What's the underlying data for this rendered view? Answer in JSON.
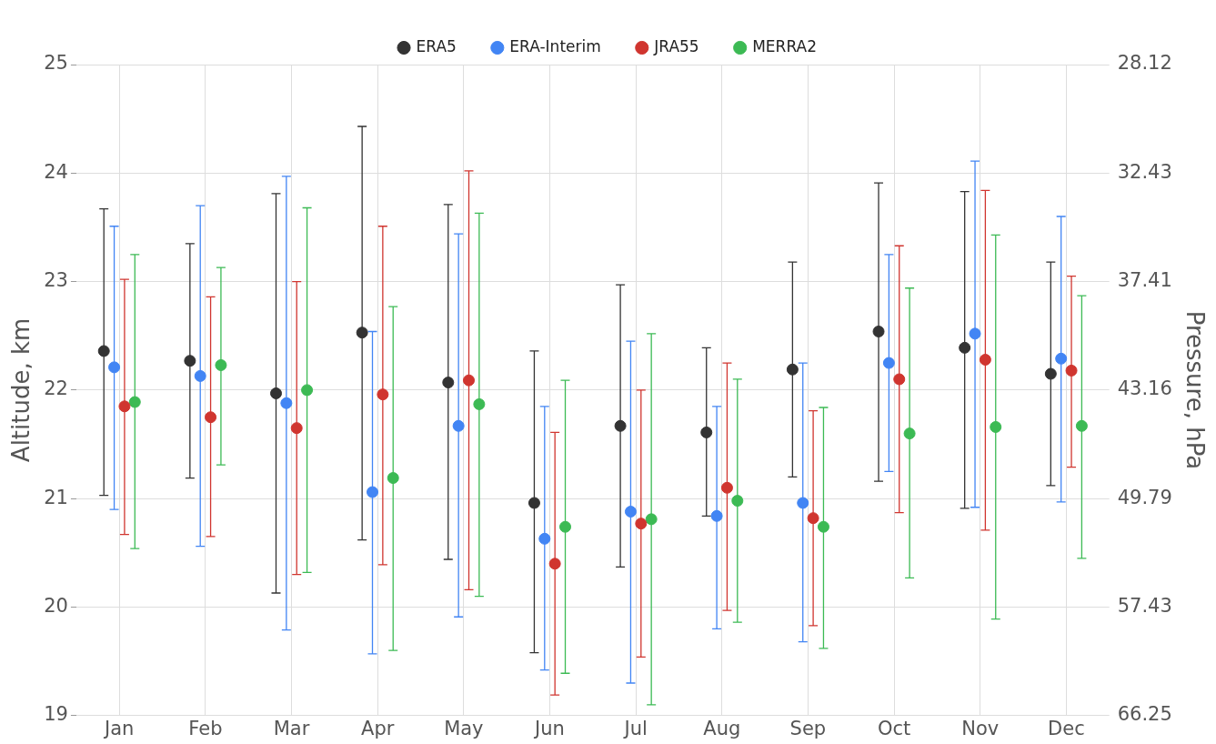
{
  "chart_data": {
    "type": "scatter",
    "ylabel": "Altitude, km",
    "y2label": "Pressure, hPa",
    "categories": [
      "Jan",
      "Feb",
      "Mar",
      "Apr",
      "May",
      "Jun",
      "Jul",
      "Aug",
      "Sep",
      "Oct",
      "Nov",
      "Dec"
    ],
    "series": [
      {
        "name": "ERA5",
        "color": "#333333",
        "values": [
          22.36,
          22.27,
          21.97,
          22.53,
          22.07,
          20.96,
          21.67,
          21.61,
          22.19,
          22.54,
          22.39,
          22.15
        ],
        "errors": [
          [
            21.03,
            23.67
          ],
          [
            21.19,
            23.35
          ],
          [
            20.13,
            23.81
          ],
          [
            20.62,
            24.43
          ],
          [
            20.44,
            23.71
          ],
          [
            19.58,
            22.36
          ],
          [
            20.37,
            22.97
          ],
          [
            20.84,
            22.39
          ],
          [
            21.2,
            23.18
          ],
          [
            21.16,
            23.91
          ],
          [
            20.91,
            23.83
          ],
          [
            21.12,
            23.18
          ]
        ]
      },
      {
        "name": "ERA-Interim",
        "color": "#4285f4",
        "values": [
          22.21,
          22.13,
          21.88,
          21.06,
          21.67,
          20.63,
          20.88,
          20.84,
          20.96,
          22.25,
          22.52,
          22.29
        ],
        "errors": [
          [
            20.9,
            23.51
          ],
          [
            20.56,
            23.7
          ],
          [
            19.79,
            23.97
          ],
          [
            19.57,
            22.54
          ],
          [
            19.91,
            23.44
          ],
          [
            19.42,
            21.85
          ],
          [
            19.3,
            22.45
          ],
          [
            19.8,
            21.85
          ],
          [
            19.68,
            22.25
          ],
          [
            21.25,
            23.25
          ],
          [
            20.92,
            24.11
          ],
          [
            20.97,
            23.6
          ]
        ]
      },
      {
        "name": "JRA55",
        "color": "#d0352f",
        "values": [
          21.85,
          21.75,
          21.65,
          21.96,
          22.09,
          20.4,
          20.77,
          21.1,
          20.82,
          22.1,
          22.28,
          22.18
        ],
        "errors": [
          [
            20.67,
            23.02
          ],
          [
            20.65,
            22.86
          ],
          [
            20.3,
            23.0
          ],
          [
            20.39,
            23.51
          ],
          [
            20.16,
            24.02
          ],
          [
            19.19,
            21.61
          ],
          [
            19.54,
            22.0
          ],
          [
            19.97,
            22.25
          ],
          [
            19.83,
            21.81
          ],
          [
            20.87,
            23.33
          ],
          [
            20.71,
            23.84
          ],
          [
            21.29,
            23.05
          ]
        ]
      },
      {
        "name": "MERRA2",
        "color": "#3cba54",
        "values": [
          21.89,
          22.23,
          22.0,
          21.19,
          21.87,
          20.74,
          20.81,
          20.98,
          20.74,
          21.6,
          21.66,
          21.67
        ],
        "errors": [
          [
            20.54,
            23.25
          ],
          [
            21.31,
            23.13
          ],
          [
            20.32,
            23.68
          ],
          [
            19.6,
            22.77
          ],
          [
            20.1,
            23.63
          ],
          [
            19.39,
            22.09
          ],
          [
            19.1,
            22.52
          ],
          [
            19.86,
            22.1
          ],
          [
            19.62,
            21.84
          ],
          [
            20.27,
            22.94
          ],
          [
            19.89,
            23.43
          ],
          [
            20.45,
            22.87
          ]
        ]
      }
    ],
    "ylim": [
      19,
      25
    ],
    "yticks": [
      19,
      20,
      21,
      22,
      23,
      24,
      25
    ],
    "y2lim": [
      66.25,
      28.12
    ],
    "y2ticks": [
      66.25,
      57.43,
      49.79,
      43.16,
      37.41,
      32.43,
      28.12
    ],
    "log": "y2",
    "grid": true,
    "legend": "top",
    "marker": "circle"
  }
}
